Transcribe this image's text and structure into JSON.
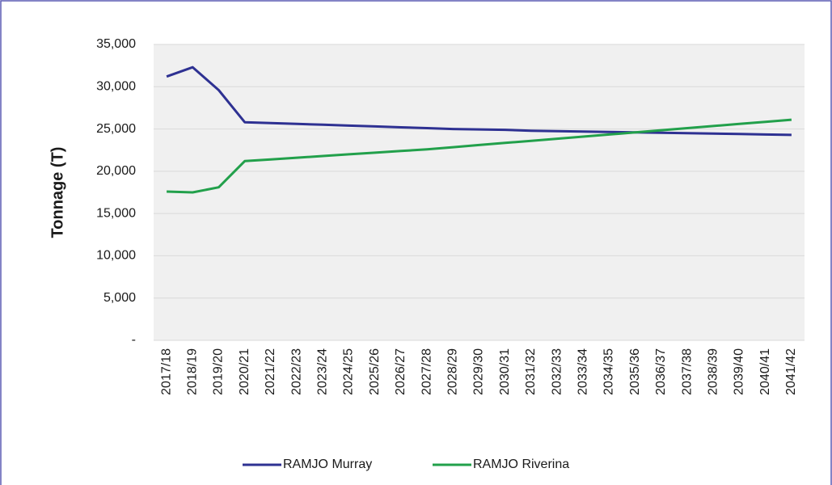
{
  "chart_data": {
    "type": "line",
    "y_label": "Tonnage (T)",
    "categories": [
      "2017/18",
      "2018/19",
      "2019/20",
      "2020/21",
      "2021/22",
      "2022/23",
      "2023/24",
      "2024/25",
      "2025/26",
      "2026/27",
      "2027/28",
      "2028/29",
      "2029/30",
      "2030/31",
      "2031/32",
      "2032/33",
      "2033/34",
      "2034/35",
      "2035/36",
      "2036/37",
      "2037/38",
      "2038/39",
      "2039/40",
      "2040/41",
      "2041/42"
    ],
    "series": [
      {
        "name": "RAMJO Murray",
        "color": "#2e3192",
        "values": [
          31200,
          32300,
          29600,
          25800,
          25700,
          25600,
          25500,
          25400,
          25300,
          25200,
          25100,
          25000,
          24950,
          24900,
          24800,
          24750,
          24700,
          24650,
          24600,
          24550,
          24500,
          24450,
          24400,
          24350,
          24300
        ]
      },
      {
        "name": "RAMJO Riverina",
        "color": "#22a04b",
        "values": [
          17600,
          17500,
          18100,
          21200,
          21400,
          21600,
          21800,
          22000,
          22200,
          22400,
          22600,
          22850,
          23100,
          23350,
          23600,
          23850,
          24100,
          24350,
          24600,
          24850,
          25100,
          25350,
          25600,
          25850,
          26100
        ]
      }
    ],
    "ylim": [
      0,
      35000
    ],
    "yticks": [
      {
        "value": 0,
        "label": "-"
      },
      {
        "value": 5000,
        "label": "5,000"
      },
      {
        "value": 10000,
        "label": "10,000"
      },
      {
        "value": 15000,
        "label": "15,000"
      },
      {
        "value": 20000,
        "label": "20,000"
      },
      {
        "value": 25000,
        "label": "25,000"
      },
      {
        "value": 30000,
        "label": "30,000"
      },
      {
        "value": 35000,
        "label": "35,000"
      }
    ],
    "grid": true,
    "legend": "bottom"
  }
}
